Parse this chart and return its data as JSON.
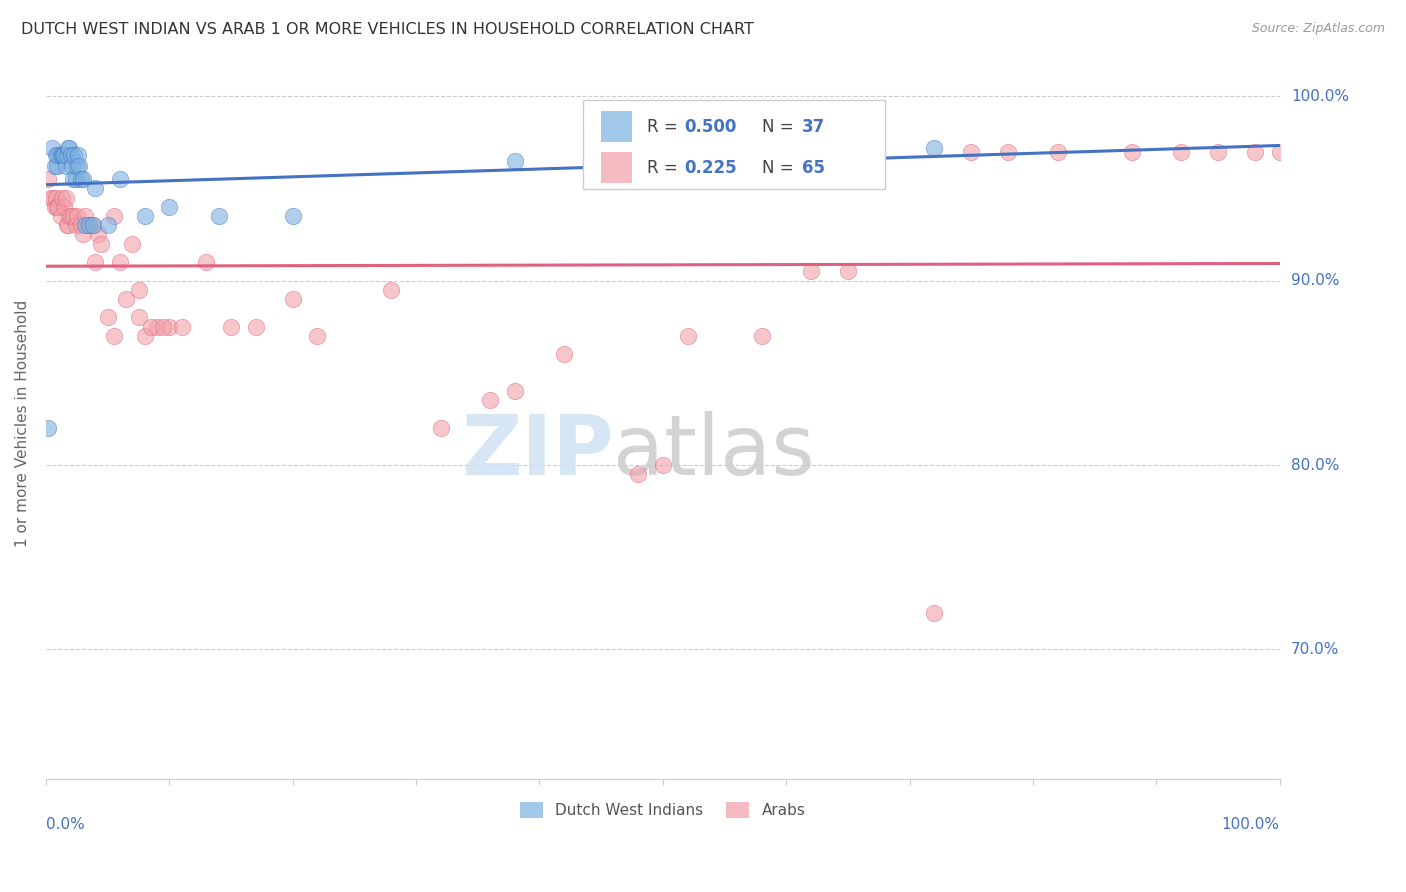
{
  "title": "DUTCH WEST INDIAN VS ARAB 1 OR MORE VEHICLES IN HOUSEHOLD CORRELATION CHART",
  "source": "Source: ZipAtlas.com",
  "ylabel": "1 or more Vehicles in Household",
  "xlim": [
    0.0,
    1.0
  ],
  "ylim": [
    0.63,
    1.015
  ],
  "ytick_gridlines": [
    0.7,
    0.8,
    0.9,
    1.0
  ],
  "blue_color": "#7ab0e0",
  "pink_color": "#f0a0a8",
  "blue_line_color": "#4472c4",
  "pink_line_color": "#e06080",
  "axis_label_color": "#4472c4",
  "legend_R_color": "#4472c4",
  "legend_N_color": "#4472c4",
  "blue_scatter_x": [
    0.002,
    0.005,
    0.007,
    0.008,
    0.009,
    0.01,
    0.012,
    0.013,
    0.014,
    0.015,
    0.016,
    0.017,
    0.018,
    0.019,
    0.02,
    0.021,
    0.022,
    0.023,
    0.024,
    0.025,
    0.026,
    0.027,
    0.028,
    0.03,
    0.032,
    0.035,
    0.038,
    0.04,
    0.05,
    0.06,
    0.08,
    0.1,
    0.14,
    0.2,
    0.38,
    0.65,
    0.72
  ],
  "blue_scatter_y": [
    0.82,
    0.972,
    0.962,
    0.968,
    0.962,
    0.968,
    0.968,
    0.968,
    0.968,
    0.968,
    0.962,
    0.968,
    0.972,
    0.972,
    0.968,
    0.962,
    0.955,
    0.968,
    0.955,
    0.962,
    0.968,
    0.962,
    0.955,
    0.955,
    0.93,
    0.93,
    0.93,
    0.95,
    0.93,
    0.955,
    0.935,
    0.94,
    0.935,
    0.935,
    0.965,
    0.972,
    0.972
  ],
  "pink_scatter_x": [
    0.002,
    0.004,
    0.006,
    0.007,
    0.008,
    0.009,
    0.01,
    0.012,
    0.013,
    0.015,
    0.016,
    0.017,
    0.018,
    0.019,
    0.02,
    0.022,
    0.024,
    0.025,
    0.028,
    0.03,
    0.032,
    0.035,
    0.038,
    0.04,
    0.042,
    0.045,
    0.05,
    0.055,
    0.06,
    0.07,
    0.075,
    0.08,
    0.09,
    0.1,
    0.11,
    0.13,
    0.15,
    0.17,
    0.2,
    0.22,
    0.28,
    0.32,
    0.36,
    0.38,
    0.42,
    0.48,
    0.5,
    0.52,
    0.58,
    0.62,
    0.65,
    0.72,
    0.75,
    0.78,
    0.82,
    0.88,
    0.92,
    0.95,
    0.98,
    1.0,
    0.055,
    0.065,
    0.075,
    0.085,
    0.095
  ],
  "pink_scatter_y": [
    0.955,
    0.945,
    0.945,
    0.94,
    0.945,
    0.94,
    0.94,
    0.935,
    0.945,
    0.94,
    0.945,
    0.93,
    0.93,
    0.935,
    0.935,
    0.935,
    0.93,
    0.935,
    0.93,
    0.925,
    0.935,
    0.93,
    0.93,
    0.91,
    0.925,
    0.92,
    0.88,
    0.935,
    0.91,
    0.92,
    0.895,
    0.87,
    0.875,
    0.875,
    0.875,
    0.91,
    0.875,
    0.875,
    0.89,
    0.87,
    0.895,
    0.82,
    0.835,
    0.84,
    0.86,
    0.795,
    0.8,
    0.87,
    0.87,
    0.905,
    0.905,
    0.72,
    0.97,
    0.97,
    0.97,
    0.97,
    0.97,
    0.97,
    0.97,
    0.97,
    0.87,
    0.89,
    0.88,
    0.875,
    0.875
  ]
}
